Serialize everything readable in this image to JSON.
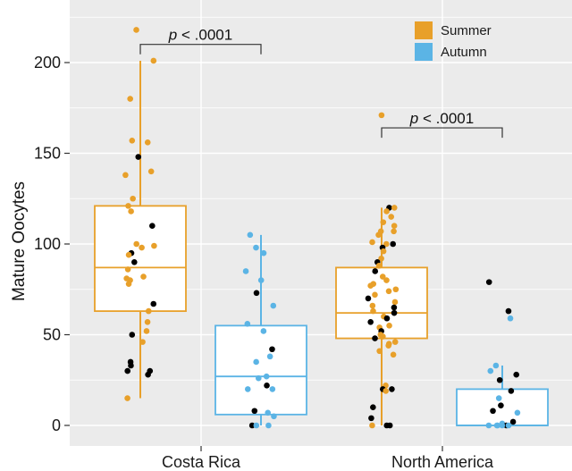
{
  "chart_data": {
    "type": "box",
    "ylabel": "Mature Oocytes",
    "ylim": [
      -12,
      228
    ],
    "y_ticks": [
      "0",
      "50",
      "100",
      "150",
      "200"
    ],
    "y_tick_values": [
      0,
      50,
      100,
      150,
      200
    ],
    "categories": [
      "Costa Rica",
      "North America"
    ],
    "grid": true,
    "legend": {
      "placement": "top-right",
      "entries": [
        "Summer",
        "Autumn"
      ]
    },
    "colors": {
      "Summer": "#E8A02A",
      "Autumn": "#5BB4E5",
      "highlight_point": "#000000",
      "panel_bg": "#EBEBEB",
      "grid": "#FFFFFF"
    },
    "series": [
      {
        "name": "Summer",
        "boxes": [
          {
            "category": "Costa Rica",
            "min": 15,
            "q1": 63,
            "median": 87,
            "q3": 121,
            "max": 201
          },
          {
            "category": "North America",
            "min": 0,
            "q1": 48,
            "median": 62,
            "q3": 87,
            "max": 120
          }
        ],
        "points": [
          [
            {
              "y": 218,
              "k": 0
            },
            {
              "y": 201,
              "k": 0
            },
            {
              "y": 180,
              "k": 0
            },
            {
              "y": 157,
              "k": 0
            },
            {
              "y": 156,
              "k": 0
            },
            {
              "y": 148,
              "k": 1
            },
            {
              "y": 140,
              "k": 0
            },
            {
              "y": 138,
              "k": 0
            },
            {
              "y": 125,
              "k": 0
            },
            {
              "y": 121,
              "k": 0
            },
            {
              "y": 118,
              "k": 0
            },
            {
              "y": 110,
              "k": 1
            },
            {
              "y": 100,
              "k": 0
            },
            {
              "y": 99,
              "k": 0
            },
            {
              "y": 98,
              "k": 0
            },
            {
              "y": 95,
              "k": 1
            },
            {
              "y": 94,
              "k": 0
            },
            {
              "y": 90,
              "k": 1
            },
            {
              "y": 86,
              "k": 0
            },
            {
              "y": 82,
              "k": 0
            },
            {
              "y": 80,
              "k": 0
            },
            {
              "y": 78,
              "k": 0
            },
            {
              "y": 81,
              "k": 0
            },
            {
              "y": 67,
              "k": 1
            },
            {
              "y": 63,
              "k": 0
            },
            {
              "y": 57,
              "k": 0
            },
            {
              "y": 52,
              "k": 0
            },
            {
              "y": 50,
              "k": 1
            },
            {
              "y": 46,
              "k": 0
            },
            {
              "y": 35,
              "k": 1
            },
            {
              "y": 33,
              "k": 1
            },
            {
              "y": 30,
              "k": 1
            },
            {
              "y": 30,
              "k": 1
            },
            {
              "y": 28,
              "k": 1
            },
            {
              "y": 15,
              "k": 0
            }
          ],
          [
            {
              "y": 171,
              "k": 0
            },
            {
              "y": 120,
              "k": 1
            },
            {
              "y": 120,
              "k": 0
            },
            {
              "y": 118,
              "k": 0
            },
            {
              "y": 115,
              "k": 0
            },
            {
              "y": 112,
              "k": 0
            },
            {
              "y": 110,
              "k": 0
            },
            {
              "y": 107,
              "k": 0
            },
            {
              "y": 107,
              "k": 0
            },
            {
              "y": 105,
              "k": 0
            },
            {
              "y": 101,
              "k": 0
            },
            {
              "y": 100,
              "k": 1
            },
            {
              "y": 100,
              "k": 0
            },
            {
              "y": 98,
              "k": 1
            },
            {
              "y": 96,
              "k": 0
            },
            {
              "y": 92,
              "k": 0
            },
            {
              "y": 90,
              "k": 1
            },
            {
              "y": 88,
              "k": 0
            },
            {
              "y": 85,
              "k": 1
            },
            {
              "y": 82,
              "k": 0
            },
            {
              "y": 80,
              "k": 0
            },
            {
              "y": 78,
              "k": 0
            },
            {
              "y": 77,
              "k": 0
            },
            {
              "y": 75,
              "k": 0
            },
            {
              "y": 74,
              "k": 0
            },
            {
              "y": 72,
              "k": 0
            },
            {
              "y": 70,
              "k": 1
            },
            {
              "y": 68,
              "k": 0
            },
            {
              "y": 66,
              "k": 0
            },
            {
              "y": 65,
              "k": 1
            },
            {
              "y": 63,
              "k": 0
            },
            {
              "y": 62,
              "k": 1
            },
            {
              "y": 60,
              "k": 0
            },
            {
              "y": 59,
              "k": 1
            },
            {
              "y": 57,
              "k": 1
            },
            {
              "y": 55,
              "k": 0
            },
            {
              "y": 54,
              "k": 0
            },
            {
              "y": 52,
              "k": 1
            },
            {
              "y": 50,
              "k": 0
            },
            {
              "y": 49,
              "k": 0
            },
            {
              "y": 48,
              "k": 1
            },
            {
              "y": 46,
              "k": 0
            },
            {
              "y": 45,
              "k": 0
            },
            {
              "y": 44,
              "k": 0
            },
            {
              "y": 41,
              "k": 0
            },
            {
              "y": 39,
              "k": 0
            },
            {
              "y": 22,
              "k": 0
            },
            {
              "y": 20,
              "k": 1
            },
            {
              "y": 20,
              "k": 1
            },
            {
              "y": 19,
              "k": 0
            },
            {
              "y": 10,
              "k": 1
            },
            {
              "y": 4,
              "k": 1
            },
            {
              "y": 0,
              "k": 1
            },
            {
              "y": 0,
              "k": 1
            },
            {
              "y": 0,
              "k": 0
            }
          ]
        ]
      },
      {
        "name": "Autumn",
        "boxes": [
          {
            "category": "Costa Rica",
            "min": 0,
            "q1": 6,
            "median": 27,
            "q3": 55,
            "max": 105
          },
          {
            "category": "North America",
            "min": 0,
            "q1": 0,
            "median": 0,
            "q3": 20,
            "max": 33
          }
        ],
        "points": [
          [
            {
              "y": 105,
              "k": 0
            },
            {
              "y": 98,
              "k": 0
            },
            {
              "y": 95,
              "k": 0
            },
            {
              "y": 85,
              "k": 0
            },
            {
              "y": 80,
              "k": 0
            },
            {
              "y": 73,
              "k": 1
            },
            {
              "y": 66,
              "k": 0
            },
            {
              "y": 56,
              "k": 0
            },
            {
              "y": 52,
              "k": 0
            },
            {
              "y": 42,
              "k": 1
            },
            {
              "y": 38,
              "k": 0
            },
            {
              "y": 35,
              "k": 0
            },
            {
              "y": 27,
              "k": 0
            },
            {
              "y": 26,
              "k": 0
            },
            {
              "y": 22,
              "k": 1
            },
            {
              "y": 20,
              "k": 0
            },
            {
              "y": 20,
              "k": 0
            },
            {
              "y": 8,
              "k": 1
            },
            {
              "y": 7,
              "k": 0
            },
            {
              "y": 5,
              "k": 0
            },
            {
              "y": 0,
              "k": 1
            },
            {
              "y": 0,
              "k": 0
            },
            {
              "y": 0,
              "k": 0
            }
          ],
          [
            {
              "y": 79,
              "k": 1
            },
            {
              "y": 63,
              "k": 1
            },
            {
              "y": 59,
              "k": 0
            },
            {
              "y": 33,
              "k": 0
            },
            {
              "y": 30,
              "k": 0
            },
            {
              "y": 28,
              "k": 1
            },
            {
              "y": 25,
              "k": 1
            },
            {
              "y": 19,
              "k": 1
            },
            {
              "y": 15,
              "k": 0
            },
            {
              "y": 11,
              "k": 1
            },
            {
              "y": 8,
              "k": 1
            },
            {
              "y": 7,
              "k": 0
            },
            {
              "y": 2,
              "k": 1
            },
            {
              "y": 1,
              "k": 0
            },
            {
              "y": 0,
              "k": 1
            },
            {
              "y": 0,
              "k": 0
            },
            {
              "y": 0,
              "k": 0
            },
            {
              "y": 0,
              "k": 0
            },
            {
              "y": 0,
              "k": 0
            },
            {
              "y": 0,
              "k": 0
            }
          ]
        ]
      }
    ],
    "annotations": [
      {
        "category": "Costa Rica",
        "text": "p < .0001",
        "y": 210
      },
      {
        "category": "North America",
        "text": "p < .0001",
        "y": 164
      }
    ]
  }
}
